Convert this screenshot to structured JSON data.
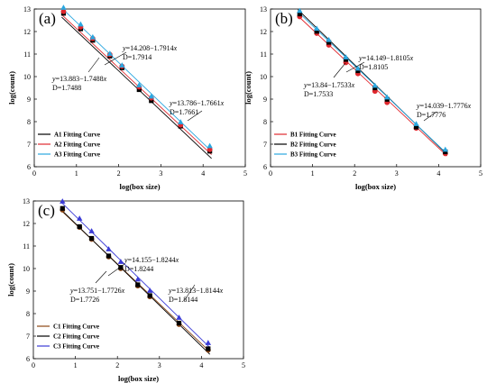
{
  "chart_data": [
    {
      "panel": "(a)",
      "type": "scatter",
      "xlabel": "log(box size)",
      "ylabel": "log(count)",
      "xlim": [
        0,
        5
      ],
      "ylim": [
        6,
        13
      ],
      "xticks": [
        "0",
        "1",
        "2",
        "3",
        "4",
        "5"
      ],
      "yticks": [
        "6",
        "7",
        "8",
        "9",
        "10",
        "11",
        "12",
        "13"
      ],
      "legend_position": "bottom-left",
      "x": [
        0.693,
        1.099,
        1.386,
        1.792,
        2.079,
        2.485,
        2.773,
        3.466,
        4.159
      ],
      "series": [
        {
          "name": "A1 Fitting Curve",
          "color": "#000000",
          "marker": "square",
          "intercept": 13.786,
          "slope": -1.7661,
          "values": [
            12.81,
            12.12,
            11.61,
            10.91,
            10.39,
            9.42,
            8.93,
            7.8,
            6.69
          ]
        },
        {
          "name": "A2 Fitting Curve",
          "color": "#e0282e",
          "marker": "circle",
          "intercept": 13.883,
          "slope": -1.7488,
          "values": [
            12.89,
            12.2,
            11.69,
            10.98,
            10.46,
            9.54,
            9.05,
            7.85,
            6.76
          ]
        },
        {
          "name": "A3 Fitting Curve",
          "color": "#2aa7e0",
          "marker": "triangle",
          "intercept": 14.208,
          "slope": -1.7914,
          "values": [
            13.06,
            12.32,
            11.75,
            11.02,
            10.5,
            9.62,
            9.12,
            7.98,
            6.92
          ]
        }
      ],
      "annotations": [
        {
          "equation": "y=14.208−1.7914x",
          "d": "D=1.7914"
        },
        {
          "equation": "y=13.883−1.7488x",
          "d": "D=1.7488"
        },
        {
          "equation": "y=13.786−1.7661x",
          "d": "D=1.7661"
        }
      ]
    },
    {
      "panel": "(b)",
      "type": "scatter",
      "xlabel": "log(box size)",
      "ylabel": "log(count)",
      "xlim": [
        0,
        5
      ],
      "ylim": [
        6,
        13
      ],
      "xticks": [
        "0",
        "1",
        "2",
        "3",
        "4",
        "5"
      ],
      "yticks": [
        "6",
        "7",
        "8",
        "9",
        "10",
        "11",
        "12",
        "13"
      ],
      "legend_position": "bottom-left",
      "x": [
        0.693,
        1.099,
        1.386,
        1.792,
        2.079,
        2.485,
        2.773,
        3.466,
        4.159
      ],
      "series": [
        {
          "name": "B1 Fitting Curve",
          "color": "#e0282e",
          "marker": "circle",
          "intercept": 13.84,
          "slope": -1.7533,
          "values": [
            12.66,
            11.92,
            11.4,
            10.62,
            10.13,
            9.35,
            8.85,
            7.71,
            6.58
          ]
        },
        {
          "name": "B2 Fitting Curve",
          "color": "#000000",
          "marker": "square",
          "intercept": 14.149,
          "slope": -1.8105,
          "values": [
            12.78,
            12.01,
            11.52,
            10.76,
            10.26,
            9.5,
            8.99,
            7.76,
            6.66
          ]
        },
        {
          "name": "B3 Fitting Curve",
          "color": "#2aa7e0",
          "marker": "triangle",
          "intercept": 14.039,
          "slope": -1.7776,
          "values": [
            12.92,
            12.13,
            11.63,
            10.86,
            10.36,
            9.6,
            9.08,
            7.9,
            6.76
          ]
        }
      ],
      "annotations": [
        {
          "equation": "y=14.149−1.8105x",
          "d": "D=1.8105"
        },
        {
          "equation": "y=13.84−1.7533x",
          "d": "D=1.7533"
        },
        {
          "equation": "y=14.039−1.7776x",
          "d": "D=1.7776"
        }
      ]
    },
    {
      "panel": "(c)",
      "type": "scatter",
      "xlabel": "log(box size)",
      "ylabel": "log(count)",
      "xlim": [
        0,
        5
      ],
      "ylim": [
        6,
        13
      ],
      "xticks": [
        "0",
        "1",
        "2",
        "3",
        "4",
        "5"
      ],
      "yticks": [
        "6",
        "7",
        "8",
        "9",
        "10",
        "11",
        "12",
        "13"
      ],
      "legend_position": "bottom-left",
      "x": [
        0.693,
        1.099,
        1.386,
        1.792,
        2.079,
        2.485,
        2.773,
        3.466,
        4.159
      ],
      "series": [
        {
          "name": "C1 Fitting Curve",
          "color": "#8b4513",
          "marker": "circle",
          "intercept": 13.751,
          "slope": -1.7726,
          "values": [
            12.6,
            11.83,
            11.3,
            10.52,
            10.0,
            9.23,
            8.75,
            7.52,
            6.38
          ]
        },
        {
          "name": "C2 Fitting Curve",
          "color": "#000000",
          "marker": "square",
          "intercept": 13.813,
          "slope": -1.8144,
          "values": [
            12.67,
            11.86,
            11.34,
            10.56,
            10.05,
            9.28,
            8.8,
            7.58,
            6.44
          ]
        },
        {
          "name": "C3 Fitting Curve",
          "color": "#3b3bd6",
          "marker": "triangle",
          "intercept": 14.155,
          "slope": -1.8244,
          "values": [
            12.98,
            12.22,
            11.66,
            10.86,
            10.3,
            9.52,
            9.02,
            7.82,
            6.7
          ]
        }
      ],
      "annotations": [
        {
          "equation": "y=14.155−1.8244x",
          "d": "D=1.8244"
        },
        {
          "equation": "y=13.751−1.7726x",
          "d": "D=1.7726"
        },
        {
          "equation": "y=13.813−1.8144x",
          "d": "D=1.8144"
        }
      ]
    }
  ]
}
